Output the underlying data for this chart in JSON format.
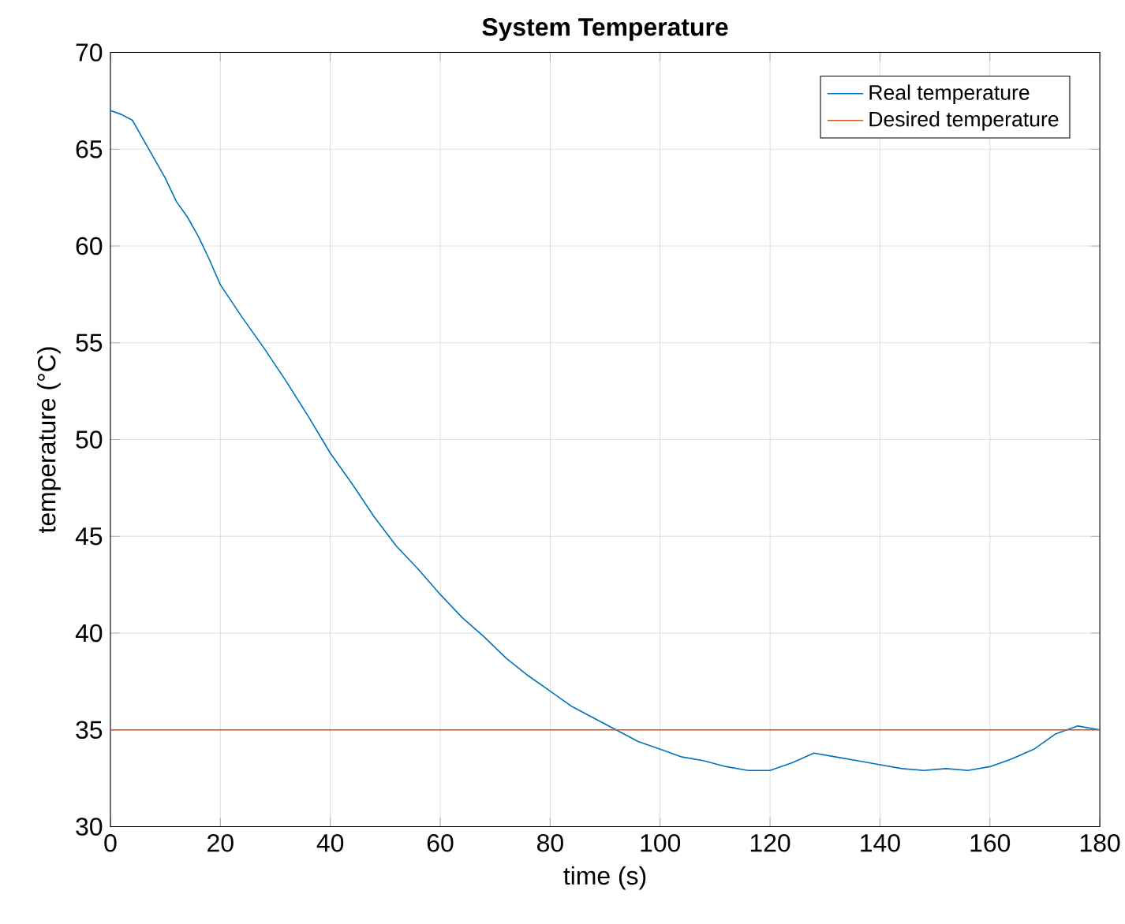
{
  "chart_data": {
    "type": "line",
    "title": "System Temperature",
    "xlabel": "time (s)",
    "ylabel": "temperature (°C)",
    "xlim": [
      0,
      180
    ],
    "ylim": [
      30,
      70
    ],
    "xticks": [
      0,
      20,
      40,
      60,
      80,
      100,
      120,
      140,
      160,
      180
    ],
    "yticks": [
      30,
      35,
      40,
      45,
      50,
      55,
      60,
      65,
      70
    ],
    "grid": true,
    "legend": "top right",
    "series": [
      {
        "name": "Real temperature",
        "color": "#0072bd",
        "x": [
          0,
          2,
          4,
          6,
          8,
          10,
          12,
          14,
          16,
          18,
          20,
          24,
          28,
          32,
          36,
          40,
          44,
          48,
          52,
          56,
          60,
          64,
          68,
          72,
          76,
          80,
          84,
          88,
          92,
          96,
          100,
          104,
          108,
          112,
          116,
          120,
          124,
          128,
          132,
          136,
          140,
          144,
          148,
          152,
          156,
          160,
          164,
          168,
          172,
          176,
          180
        ],
        "values": [
          67,
          66.8,
          66.5,
          65.5,
          64.5,
          63.5,
          62.3,
          61.5,
          60.5,
          59.3,
          58,
          56.3,
          54.7,
          53,
          51.2,
          49.3,
          47.7,
          46,
          44.5,
          43.3,
          42,
          40.8,
          39.8,
          38.7,
          37.8,
          37,
          36.2,
          35.6,
          35,
          34.4,
          34,
          33.6,
          33.4,
          33.1,
          32.9,
          32.9,
          33.3,
          33.8,
          33.6,
          33.4,
          33.2,
          33,
          32.9,
          33,
          32.9,
          33.1,
          33.5,
          34,
          34.8,
          35.2,
          35
        ]
      },
      {
        "name": "Desired temperature",
        "color": "#d95319",
        "x": [
          0,
          180
        ],
        "values": [
          35,
          35
        ]
      }
    ]
  }
}
